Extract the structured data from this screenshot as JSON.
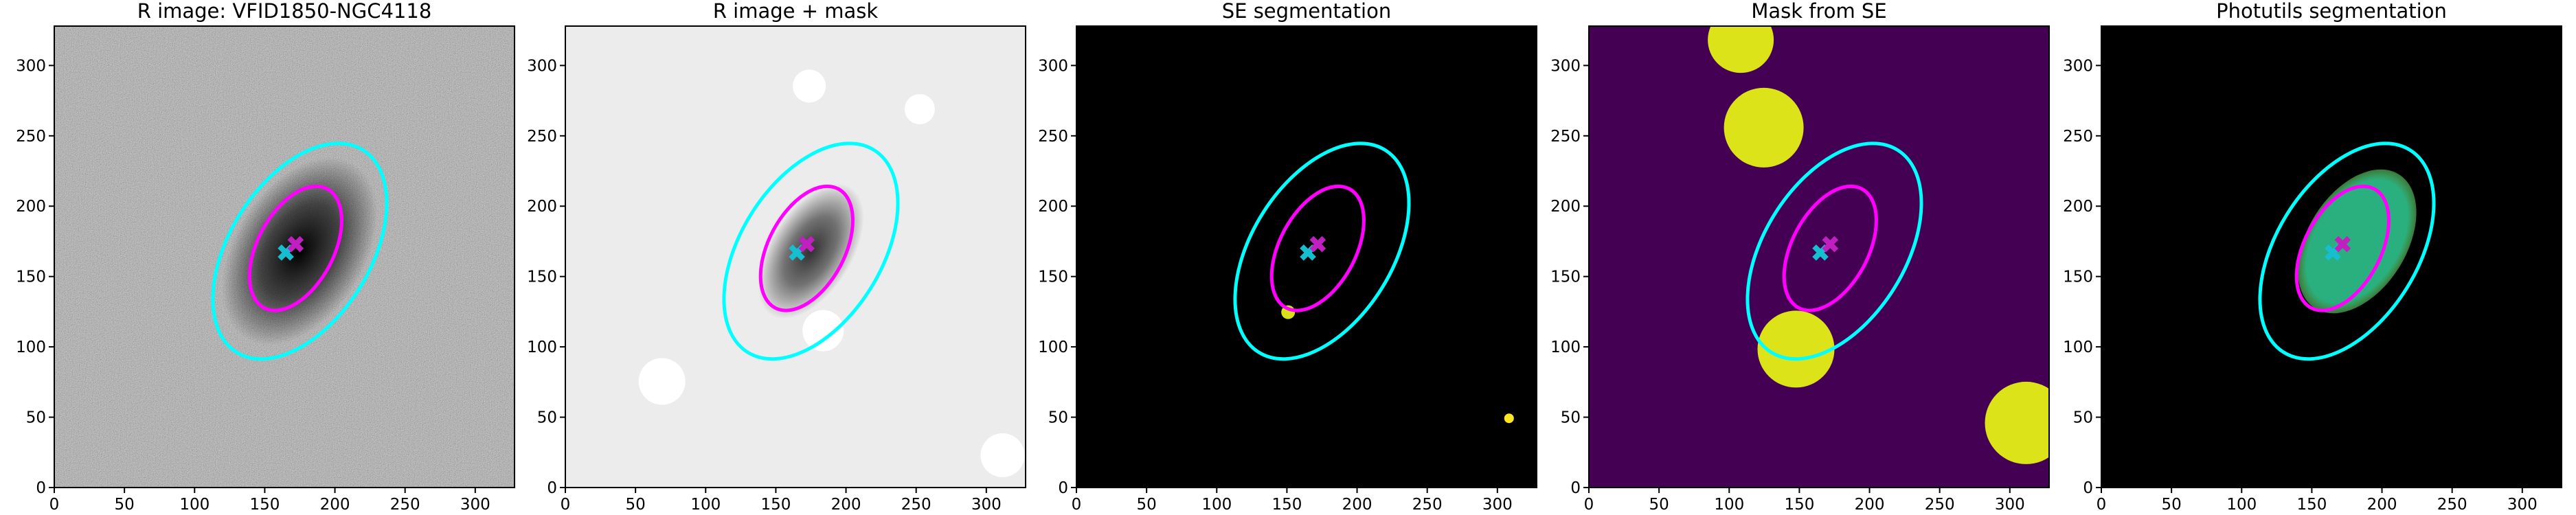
{
  "chart_data": [
    {
      "type": "image",
      "title": "R image: VFID1850-NGC4118",
      "background": "#6e6e6e",
      "xlim": [
        0,
        328
      ],
      "ylim": [
        0,
        328
      ],
      "xticks": [
        0,
        50,
        100,
        150,
        200,
        250,
        300
      ],
      "yticks": [
        0,
        50,
        100,
        150,
        200,
        250,
        300
      ],
      "ellipses": [
        {
          "cx": 175,
          "cy": 168,
          "rx": 85,
          "ry": 50,
          "angle": 58,
          "color": "#00ffff"
        },
        {
          "cx": 172,
          "cy": 170,
          "rx": 48,
          "ry": 27,
          "angle": 62,
          "color": "#ff00ff"
        }
      ],
      "markers": [
        {
          "x": 165,
          "y": 167,
          "color": "#17becf"
        },
        {
          "x": 172,
          "y": 173,
          "color": "#c020c0"
        }
      ]
    },
    {
      "type": "image",
      "title": "R image + mask",
      "background": "#ececec",
      "xlim": [
        0,
        328
      ],
      "ylim": [
        0,
        328
      ],
      "xticks": [
        0,
        50,
        100,
        150,
        200,
        250,
        300
      ],
      "yticks": [
        0,
        50,
        100,
        150,
        200,
        250,
        300
      ],
      "ellipses": [
        {
          "cx": 175,
          "cy": 168,
          "rx": 85,
          "ry": 50,
          "angle": 58,
          "color": "#00ffff"
        },
        {
          "cx": 172,
          "cy": 170,
          "rx": 48,
          "ry": 27,
          "angle": 62,
          "color": "#ff00ff"
        }
      ],
      "markers": [
        {
          "x": 165,
          "y": 167,
          "color": "#17becf"
        },
        {
          "x": 172,
          "y": 173,
          "color": "#c020c0"
        }
      ]
    },
    {
      "type": "image",
      "title": "SE segmentation",
      "background": "#000000",
      "xlim": [
        0,
        328
      ],
      "ylim": [
        0,
        328
      ],
      "xticks": [
        0,
        50,
        100,
        150,
        200,
        250,
        300
      ],
      "yticks": [
        0,
        50,
        100,
        150,
        200,
        250,
        300
      ],
      "ellipses": [
        {
          "cx": 175,
          "cy": 168,
          "rx": 85,
          "ry": 50,
          "angle": 58,
          "color": "#00ffff"
        },
        {
          "cx": 172,
          "cy": 170,
          "rx": 48,
          "ry": 27,
          "angle": 62,
          "color": "#ff00ff"
        }
      ],
      "markers": [
        {
          "x": 165,
          "y": 167,
          "color": "#17becf"
        },
        {
          "x": 172,
          "y": 173,
          "color": "#c020c0"
        }
      ]
    },
    {
      "type": "image",
      "title": "Mask from SE",
      "background": "#440154",
      "xlim": [
        0,
        328
      ],
      "ylim": [
        0,
        328
      ],
      "xticks": [
        0,
        50,
        100,
        150,
        200,
        250,
        300
      ],
      "yticks": [
        0,
        50,
        100,
        150,
        200,
        250,
        300
      ],
      "ellipses": [
        {
          "cx": 175,
          "cy": 168,
          "rx": 85,
          "ry": 50,
          "angle": 58,
          "color": "#00ffff"
        },
        {
          "cx": 172,
          "cy": 170,
          "rx": 48,
          "ry": 27,
          "angle": 62,
          "color": "#ff00ff"
        }
      ],
      "markers": [
        {
          "x": 165,
          "y": 167,
          "color": "#17becf"
        },
        {
          "x": 172,
          "y": 173,
          "color": "#c020c0"
        }
      ]
    },
    {
      "type": "image",
      "title": "Photutils segmentation",
      "background": "#000000",
      "xlim": [
        0,
        328
      ],
      "ylim": [
        0,
        328
      ],
      "xticks": [
        0,
        50,
        100,
        150,
        200,
        250,
        300
      ],
      "yticks": [
        0,
        50,
        100,
        150,
        200,
        250,
        300
      ],
      "ellipses": [
        {
          "cx": 175,
          "cy": 168,
          "rx": 85,
          "ry": 50,
          "angle": 58,
          "color": "#00ffff"
        },
        {
          "cx": 172,
          "cy": 170,
          "rx": 48,
          "ry": 27,
          "angle": 62,
          "color": "#ff00ff"
        }
      ],
      "markers": [
        {
          "x": 165,
          "y": 167,
          "color": "#17becf"
        },
        {
          "x": 172,
          "y": 173,
          "color": "#c020c0"
        }
      ]
    }
  ]
}
